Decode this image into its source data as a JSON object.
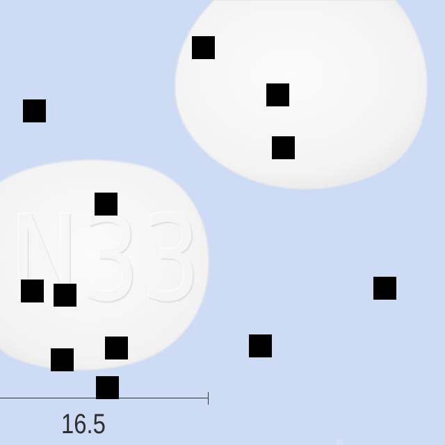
{
  "image": {
    "background_color": "#cddcf4",
    "tablet_color": "#f7f7f7",
    "redaction_color": "#000000"
  },
  "tablet_bottom": {
    "imprint": "N33"
  },
  "scale_bar": {
    "label": "16.5"
  },
  "watermark": {
    "icon": "copyright-icon"
  },
  "redaction_boxes_count": 12
}
